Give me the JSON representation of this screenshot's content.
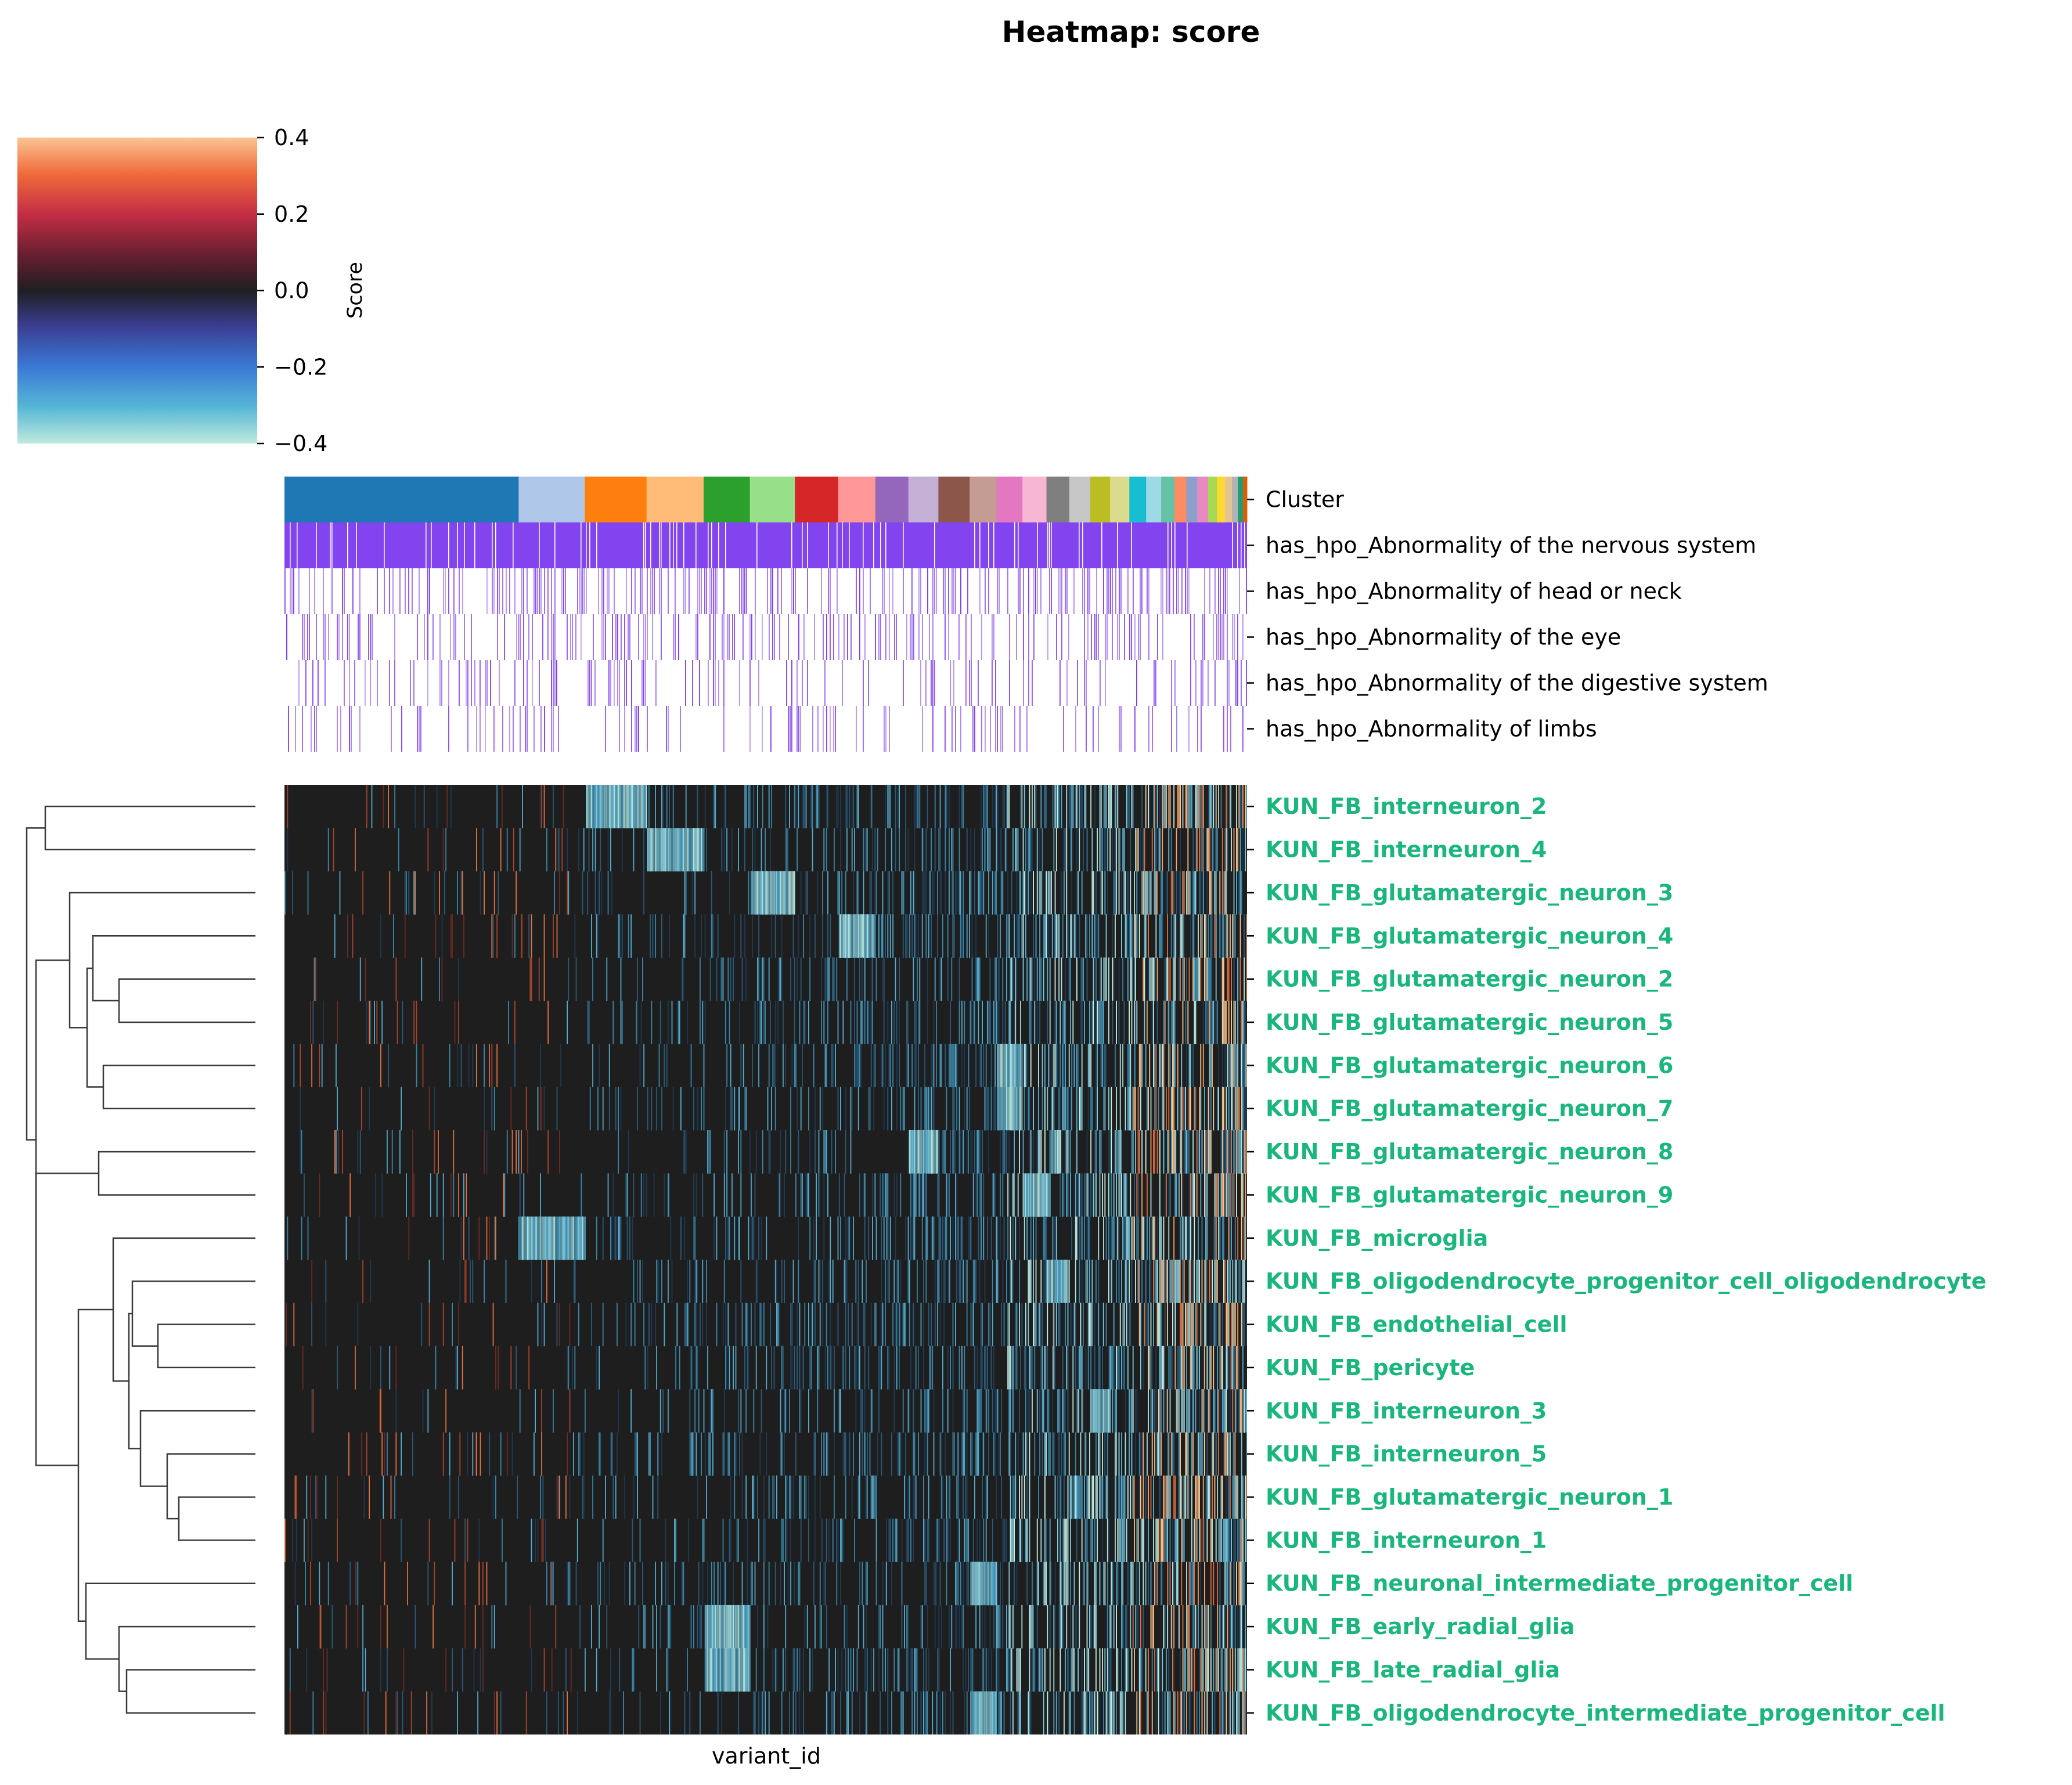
{
  "chart_data": {
    "type": "heatmap",
    "title": "Heatmap: score",
    "xlabel": "variant_id",
    "colorbar": {
      "label": "Score",
      "range": [
        -0.4,
        0.4
      ],
      "ticks": [
        "0.4",
        "0.2",
        "0.0",
        "−0.2",
        "−0.4"
      ],
      "colormap": "icefire"
    },
    "column_annotations": [
      "Cluster",
      "has_hpo_Abnormality of the nervous system",
      "has_hpo_Abnormality of head or neck",
      "has_hpo_Abnormality of the eye",
      "has_hpo_Abnormality of the digestive system",
      "has_hpo_Abnormality of limbs"
    ],
    "cluster_colors": [
      "#1f77b4",
      "#aec7e8",
      "#ff7f0e",
      "#ffbb78",
      "#2ca02c",
      "#98df8a",
      "#d62728",
      "#ff9896",
      "#9467bd",
      "#c5b0d5",
      "#8c564b",
      "#c49c94",
      "#e377c2",
      "#f7b6d2",
      "#7f7f7f",
      "#c7c7c7",
      "#bcbd22",
      "#dbdb8d",
      "#17becf",
      "#9edae5",
      "#66c2a5",
      "#fc8d62",
      "#8da0cb",
      "#e78ac3",
      "#a6d854",
      "#ffd92f",
      "#e5c494",
      "#b3b3b3",
      "#1b9e77",
      "#d95f02"
    ],
    "rows": [
      "KUN_FB_interneuron_2",
      "KUN_FB_interneuron_4",
      "KUN_FB_glutamatergic_neuron_3",
      "KUN_FB_glutamatergic_neuron_4",
      "KUN_FB_glutamatergic_neuron_2",
      "KUN_FB_glutamatergic_neuron_5",
      "KUN_FB_glutamatergic_neuron_6",
      "KUN_FB_glutamatergic_neuron_7",
      "KUN_FB_glutamatergic_neuron_8",
      "KUN_FB_glutamatergic_neuron_9",
      "KUN_FB_microglia",
      "KUN_FB_oligodendrocyte_progenitor_cell_oligodendrocyte",
      "KUN_FB_endothelial_cell",
      "KUN_FB_pericyte",
      "KUN_FB_interneuron_3",
      "KUN_FB_interneuron_5",
      "KUN_FB_glutamatergic_neuron_1",
      "KUN_FB_interneuron_1",
      "KUN_FB_neuronal_intermediate_progenitor_cell",
      "KUN_FB_early_radial_glia",
      "KUN_FB_late_radial_glia",
      "KUN_FB_oligodendrocyte_intermediate_progenitor_cell"
    ],
    "row_label_color": "#19b77b",
    "hpo_color": "#7b3aed"
  }
}
